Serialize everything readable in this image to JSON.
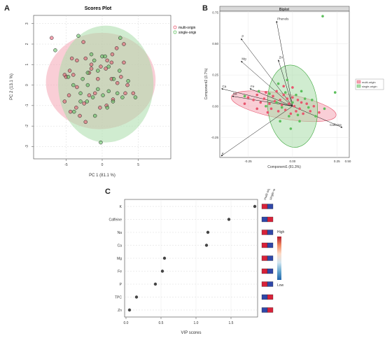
{
  "panels": {
    "a": {
      "letter": "A"
    },
    "b": {
      "letter": "B"
    },
    "c": {
      "letter": "C"
    }
  },
  "chart_data": [
    {
      "id": "scores",
      "type": "scatter",
      "title": "Scores Plot",
      "xlabel": "PC 1 (81.1 %)",
      "ylabel": "PC 2 (13.1 %)",
      "xlim": [
        -9.5,
        9.5
      ],
      "ylim": [
        -3.6,
        3.4
      ],
      "xticks": [
        -5,
        0,
        5
      ],
      "yticks": [
        -3,
        -2,
        -1,
        0,
        1,
        2,
        3
      ],
      "grid": true,
      "legend_position": "top-right",
      "ellipses": [
        {
          "name": "multi-origin",
          "color": "#f4a6b4",
          "cx": -0.2,
          "cy": 0.2,
          "rx": 7.6,
          "ry": 2.35,
          "angle": 5
        },
        {
          "name": "single-origin",
          "color": "#a9dca9",
          "cx": 0.5,
          "cy": 0.05,
          "rx": 6.6,
          "ry": 2.85,
          "angle": 0
        }
      ],
      "series": [
        {
          "name": "multi-origin",
          "color": "#e8566e",
          "points": [
            [
              -7,
              2.3
            ],
            [
              -4.2,
              1.3
            ],
            [
              -4.5,
              0.7
            ],
            [
              -5.2,
              0.5
            ],
            [
              -5,
              0.4
            ],
            [
              -4,
              0.5
            ],
            [
              -3.5,
              1.2
            ],
            [
              -2.6,
              2.1
            ],
            [
              -2.3,
              1.3
            ],
            [
              -1.5,
              1
            ],
            [
              -1.5,
              0.8
            ],
            [
              0.5,
              0.8
            ],
            [
              0.7,
              1.2
            ],
            [
              1.3,
              1.1
            ],
            [
              1.4,
              1.5
            ],
            [
              2,
              1.8
            ],
            [
              3,
              2
            ],
            [
              3,
              1.1
            ],
            [
              2.6,
              0.4
            ],
            [
              3.5,
              0
            ],
            [
              4.3,
              -0.4
            ],
            [
              3.2,
              -0.4
            ],
            [
              2.1,
              0.1
            ],
            [
              1.3,
              0.3
            ],
            [
              -0.6,
              0.3
            ],
            [
              -1,
              -0.4
            ],
            [
              -1.8,
              -0.5
            ],
            [
              -2.5,
              -0.9
            ],
            [
              -3.5,
              -0.1
            ],
            [
              -4.6,
              -0.5
            ],
            [
              -5.2,
              -0.8
            ],
            [
              -4.4,
              -1.3
            ],
            [
              -3.6,
              -1.1
            ],
            [
              -3.1,
              -1.5
            ],
            [
              -2.3,
              -1.8
            ],
            [
              -0.3,
              -1.1
            ],
            [
              0.6,
              -1
            ],
            [
              1.5,
              -0.7
            ],
            [
              -0.2,
              0.9
            ],
            [
              -1.8,
              0.6
            ]
          ]
        },
        {
          "name": "single-origin",
          "color": "#5cbf5c",
          "points": [
            [
              -6.5,
              1.7
            ],
            [
              -3.3,
              2.4
            ],
            [
              2.5,
              2.3
            ],
            [
              -4,
              0
            ],
            [
              -3.9,
              -1.3
            ],
            [
              -3,
              -0.4
            ],
            [
              -2.7,
              0.3
            ],
            [
              -2,
              0.6
            ],
            [
              -1.5,
              1.5
            ],
            [
              -1.1,
              1.2
            ],
            [
              -0.6,
              0.7
            ],
            [
              0,
              1.4
            ],
            [
              0.4,
              1.4
            ],
            [
              0.9,
              0.9
            ],
            [
              1.6,
              0.3
            ],
            [
              0.9,
              -0.3
            ],
            [
              0.1,
              -0.5
            ],
            [
              -0.6,
              -0.2
            ],
            [
              -1.3,
              -0.6
            ],
            [
              -2,
              0
            ],
            [
              -2.1,
              -0.8
            ],
            [
              -3,
              -0.8
            ],
            [
              -1,
              -1.5
            ],
            [
              0.7,
              -1.1
            ],
            [
              1.5,
              -0.8
            ],
            [
              2.1,
              -0.4
            ],
            [
              2.8,
              -0.6
            ],
            [
              2.4,
              0.7
            ],
            [
              3.6,
              0.2
            ],
            [
              4.6,
              -0.6
            ],
            [
              -0.2,
              -2.8
            ],
            [
              -4.7,
              0.4
            ]
          ]
        }
      ]
    },
    {
      "id": "biplot",
      "type": "scatter",
      "title": "Biplot",
      "xlabel": "Component1 (81.3%)",
      "ylabel": "Component2 (3.7%)",
      "xlim": [
        -0.41,
        0.32
      ],
      "ylim": [
        -0.41,
        0.76
      ],
      "xticks": [
        -0.25,
        0.0,
        0.25,
        0.5
      ],
      "tick_labels_x": [
        "-0.25",
        "0.00",
        "0.25",
        "0.50"
      ],
      "yticks": [
        -0.25,
        0.0,
        0.25,
        0.5,
        0.75
      ],
      "tick_labels_y": [
        "-0.25",
        "0.00",
        "0.25",
        "0.50",
        "0.75"
      ],
      "grid": true,
      "legend_position": "right",
      "ellipses": [
        {
          "name": "multi-origin",
          "color": "#f4a6b4",
          "cx": -0.05,
          "cy": 0.0,
          "rx": 0.3,
          "ry": 0.1,
          "angle": -10
        },
        {
          "name": "single-origin",
          "color": "#a9dca9",
          "cx": 0.0,
          "cy": 0.0,
          "rx": 0.14,
          "ry": 0.33,
          "angle": 5
        }
      ],
      "loadings": [
        {
          "label": "Phenols",
          "x": -0.09,
          "y": 0.68
        },
        {
          "label": "P",
          "x": -0.29,
          "y": 0.54
        },
        {
          "label": "Mg",
          "x": -0.29,
          "y": 0.36
        },
        {
          "label": "Zn",
          "x": -0.08,
          "y": 0.37
        },
        {
          "label": "Ca",
          "x": -0.4,
          "y": 0.14
        },
        {
          "label": "Na",
          "x": -0.34,
          "y": 0.08
        },
        {
          "label": "Fe",
          "x": -0.24,
          "y": 0.14
        },
        {
          "label": "Caffeine",
          "x": 0.28,
          "y": -0.17
        },
        {
          "label": "K",
          "x": -0.43,
          "y": -0.42
        }
      ],
      "series": [
        {
          "name": "multi-origin",
          "color": "#e8566e",
          "points": [
            [
              -0.25,
              0.07
            ],
            [
              -0.22,
              0.05
            ],
            [
              -0.2,
              0.09
            ],
            [
              -0.18,
              0.03
            ],
            [
              -0.16,
              0.06
            ],
            [
              -0.15,
              0.11
            ],
            [
              -0.13,
              0.02
            ],
            [
              -0.12,
              -0.02
            ],
            [
              -0.11,
              0.08
            ],
            [
              -0.1,
              0.04
            ],
            [
              -0.09,
              0.12
            ],
            [
              -0.08,
              -0.04
            ],
            [
              -0.07,
              0.05
            ],
            [
              -0.06,
              0.01
            ],
            [
              -0.05,
              0.09
            ],
            [
              -0.04,
              -0.03
            ],
            [
              -0.03,
              0.06
            ],
            [
              -0.02,
              0.02
            ],
            [
              -0.01,
              -0.06
            ],
            [
              0.0,
              0.07
            ],
            [
              0.01,
              0.0
            ],
            [
              0.02,
              -0.04
            ],
            [
              0.03,
              0.05
            ],
            [
              0.04,
              -0.02
            ],
            [
              0.05,
              0.03
            ],
            [
              0.06,
              -0.06
            ],
            [
              0.08,
              0.02
            ],
            [
              0.1,
              -0.04
            ],
            [
              0.12,
              0.0
            ],
            [
              0.15,
              -0.05
            ],
            [
              -0.2,
              -0.02
            ],
            [
              -0.14,
              -0.05
            ],
            [
              -0.27,
              0.02
            ],
            [
              0.0,
              0.15
            ],
            [
              -0.05,
              0.16
            ]
          ]
        },
        {
          "name": "single-origin",
          "color": "#5cbf5c",
          "points": [
            [
              0.17,
              0.72
            ],
            [
              -0.27,
              0.08
            ],
            [
              -0.19,
              0.12
            ],
            [
              -0.13,
              0.1
            ],
            [
              -0.09,
              0.03
            ],
            [
              -0.06,
              -0.01
            ],
            [
              -0.04,
              0.11
            ],
            [
              -0.02,
              -0.08
            ],
            [
              0.0,
              0.03
            ],
            [
              0.02,
              0.09
            ],
            [
              0.03,
              -0.07
            ],
            [
              0.05,
              0.12
            ],
            [
              0.07,
              0.06
            ],
            [
              0.09,
              -0.01
            ],
            [
              0.11,
              0.05
            ],
            [
              0.13,
              -0.08
            ],
            [
              0.18,
              -0.02
            ],
            [
              0.24,
              0.11
            ],
            [
              0.04,
              -0.12
            ],
            [
              -0.07,
              -0.12
            ],
            [
              -0.01,
              -0.18
            ],
            [
              -0.08,
              0.18
            ],
            [
              -0.15,
              0.0
            ],
            [
              -0.03,
              0.21
            ]
          ]
        }
      ]
    },
    {
      "id": "vip",
      "type": "scatter",
      "title": "",
      "xlabel": "VIP scores",
      "ylabel": "",
      "xlim": [
        -0.02,
        1.88
      ],
      "xticks": [
        0.0,
        0.5,
        1.0,
        1.5
      ],
      "tick_labels_x": [
        "0.0",
        "0.5",
        "1.0",
        "1.5"
      ],
      "grid": true,
      "categories": [
        "K",
        "Caffeine",
        "Na",
        "Ca",
        "Mg",
        "Fe",
        "P",
        "TPC",
        "Zn"
      ],
      "values": [
        1.84,
        1.47,
        1.17,
        1.15,
        0.55,
        0.52,
        0.42,
        0.15,
        0.05
      ],
      "heatmap": {
        "columns": [
          "multi-origin",
          "single-origin"
        ],
        "cells": [
          [
            "#d7223a",
            "#3048a8"
          ],
          [
            "#3048a8",
            "#d7223a"
          ],
          [
            "#d7223a",
            "#3048a8"
          ],
          [
            "#d7223a",
            "#3048a8"
          ],
          [
            "#d7223a",
            "#3048a8"
          ],
          [
            "#d7223a",
            "#3048a8"
          ],
          [
            "#d7223a",
            "#3048a8"
          ],
          [
            "#3048a8",
            "#d7223a"
          ],
          [
            "#3048a8",
            "#d7223a"
          ]
        ]
      },
      "colorbar": {
        "high_label": "High",
        "low_label": "Low",
        "colors": [
          "#b2182b",
          "#ef8a62",
          "#fddbc7",
          "#d1e5f0",
          "#67a9cf",
          "#2166ac"
        ]
      }
    }
  ]
}
